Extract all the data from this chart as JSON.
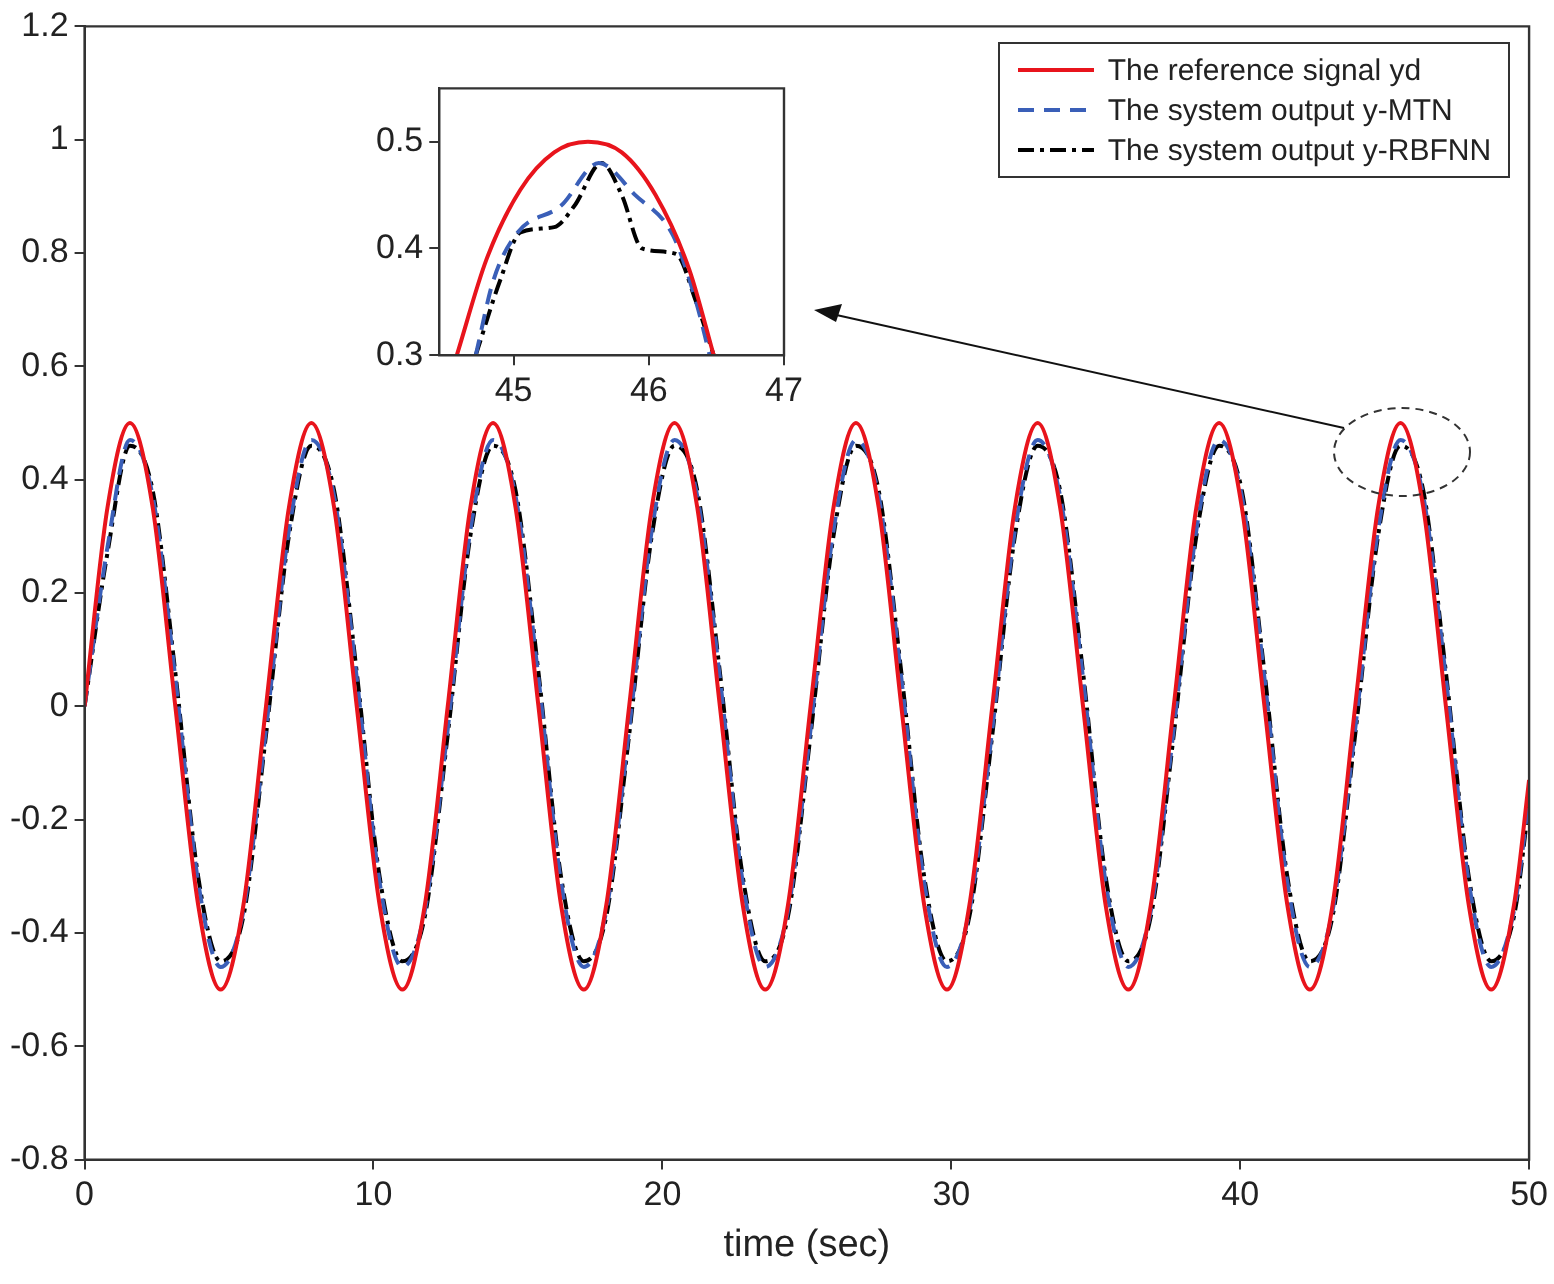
{
  "chart_data": [
    {
      "type": "line",
      "xlabel": "time (sec)",
      "xlim": [
        0,
        50
      ],
      "xticks": [
        0,
        10,
        20,
        30,
        40,
        50
      ],
      "ylim": [
        -0.8,
        1.2
      ],
      "yticks": [
        -0.8,
        -0.6,
        -0.4,
        -0.2,
        0,
        0.2,
        0.4,
        0.6,
        0.8,
        1,
        1.2
      ],
      "grid": false,
      "legend": "top right",
      "marker": "none",
      "x": [
        0,
        0.79,
        1.57,
        2.36,
        3.14,
        3.93,
        4.71,
        5.5,
        6.28,
        7.07,
        7.85,
        8.64,
        9.42,
        10.21,
        11,
        11.78,
        12.57,
        13.35,
        14.14,
        14.92,
        15.71,
        16.49,
        17.28,
        18.06,
        18.85,
        19.63,
        20.42,
        21.21,
        21.99,
        22.78,
        23.56,
        24.35,
        25.13,
        25.92,
        26.7,
        27.49,
        28.27,
        29.06,
        29.85,
        30.63,
        31.42,
        32.2,
        32.99,
        33.77,
        34.56,
        35.34,
        36.13,
        36.91,
        37.7,
        38.48,
        39.27,
        40.06,
        40.84,
        41.63,
        42.41,
        43.2,
        43.98,
        44.77,
        45.55,
        46.34,
        47.12,
        47.91,
        48.69,
        49.48,
        50
      ],
      "series": [
        {
          "name": "The reference signal yd",
          "color": "#e8141c",
          "line_style": "solid",
          "values": [
            0,
            0.35,
            0.5,
            0.35,
            0,
            -0.35,
            -0.5,
            -0.35,
            0,
            0.35,
            0.5,
            0.35,
            0,
            -0.35,
            -0.5,
            -0.35,
            0,
            0.35,
            0.5,
            0.35,
            0,
            -0.35,
            -0.5,
            -0.35,
            0,
            0.35,
            0.5,
            0.35,
            0,
            -0.35,
            -0.5,
            -0.35,
            0,
            0.35,
            0.5,
            0.35,
            0,
            -0.35,
            -0.5,
            -0.35,
            0,
            0.35,
            0.5,
            0.35,
            0,
            -0.35,
            -0.5,
            -0.35,
            0,
            0.35,
            0.5,
            0.35,
            0,
            -0.35,
            -0.5,
            -0.35,
            0,
            0.35,
            0.5,
            0.35,
            0,
            -0.35,
            -0.5,
            -0.35,
            -0.13
          ]
        },
        {
          "name": "The system output y-MTN",
          "color": "#3a5fb8",
          "line_style": "dashed",
          "values": [
            0,
            0.28,
            0.47,
            0.37,
            0.05,
            -0.31,
            -0.46,
            -0.36,
            -0.04,
            0.31,
            0.47,
            0.37,
            0.05,
            -0.31,
            -0.46,
            -0.36,
            -0.04,
            0.31,
            0.47,
            0.37,
            0.05,
            -0.31,
            -0.46,
            -0.36,
            -0.04,
            0.31,
            0.47,
            0.37,
            0.05,
            -0.31,
            -0.46,
            -0.36,
            -0.04,
            0.31,
            0.47,
            0.37,
            0.05,
            -0.31,
            -0.46,
            -0.36,
            -0.04,
            0.31,
            0.47,
            0.37,
            0.05,
            -0.31,
            -0.46,
            -0.36,
            -0.04,
            0.31,
            0.47,
            0.37,
            0.05,
            -0.31,
            -0.46,
            -0.36,
            -0.04,
            0.31,
            0.47,
            0.37,
            0.05,
            -0.31,
            -0.46,
            -0.36,
            -0.16
          ]
        },
        {
          "name": "The system output y-RBFNN",
          "color": "#000000",
          "line_style": "dotted",
          "values": [
            0,
            0.27,
            0.46,
            0.38,
            0.06,
            -0.3,
            -0.45,
            -0.37,
            -0.05,
            0.3,
            0.46,
            0.38,
            0.06,
            -0.3,
            -0.45,
            -0.37,
            -0.05,
            0.3,
            0.46,
            0.38,
            0.06,
            -0.3,
            -0.45,
            -0.37,
            -0.05,
            0.3,
            0.46,
            0.38,
            0.06,
            -0.3,
            -0.45,
            -0.37,
            -0.05,
            0.3,
            0.46,
            0.38,
            0.06,
            -0.3,
            -0.45,
            -0.37,
            -0.05,
            0.3,
            0.46,
            0.38,
            0.06,
            -0.3,
            -0.45,
            -0.37,
            -0.05,
            0.3,
            0.46,
            0.38,
            0.06,
            -0.3,
            -0.45,
            -0.37,
            -0.05,
            0.3,
            0.46,
            0.38,
            0.06,
            -0.3,
            -0.45,
            -0.37,
            -0.17
          ]
        }
      ]
    },
    {
      "type": "line",
      "xlim": [
        44.45,
        47
      ],
      "xticks": [
        45,
        46,
        47
      ],
      "ylim": [
        0.3,
        0.55
      ],
      "yticks": [
        0.3,
        0.4,
        0.5
      ],
      "grid": false,
      "marker": "none",
      "series": [
        {
          "color": "#e8141c",
          "line_style": "solid",
          "x": [
            44.58,
            44.8,
            45.05,
            45.3,
            45.55,
            45.8,
            46.05,
            46.3,
            46.48
          ],
          "values": [
            0.3,
            0.39,
            0.455,
            0.49,
            0.5,
            0.49,
            0.45,
            0.38,
            0.3
          ]
        },
        {
          "color": "#3a5fb8",
          "line_style": "dashed",
          "x": [
            44.72,
            44.85,
            45.03,
            45.35,
            45.63,
            45.9,
            46.18,
            46.35,
            46.45
          ],
          "values": [
            0.3,
            0.37,
            0.415,
            0.44,
            0.48,
            0.45,
            0.412,
            0.35,
            0.3
          ]
        },
        {
          "color": "#000000",
          "line_style": "dotted",
          "x": [
            44.72,
            44.9,
            45.05,
            45.3,
            45.45,
            45.65,
            45.8,
            45.95,
            46.2,
            46.35,
            46.48
          ],
          "values": [
            0.3,
            0.37,
            0.415,
            0.42,
            0.44,
            0.48,
            0.45,
            0.4,
            0.395,
            0.35,
            0.3
          ]
        }
      ]
    }
  ]
}
